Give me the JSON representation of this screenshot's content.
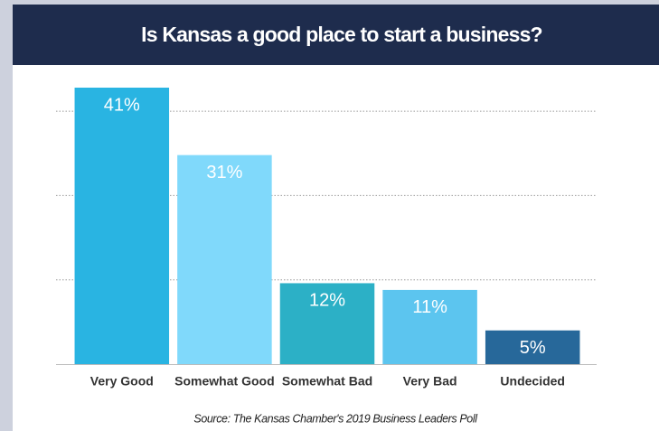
{
  "chart_data": {
    "type": "bar",
    "title": "Is Kansas a good place to start a business?",
    "source": "Source: The Kansas Chamber's 2019 Business Leaders Poll",
    "categories": [
      "Very Good",
      "Somewhat Good",
      "Somewhat Bad",
      "Very Bad",
      "Undecided"
    ],
    "values": [
      41,
      31,
      12,
      11,
      5
    ],
    "value_labels": [
      "41%",
      "31%",
      "12%",
      "11%",
      "5%"
    ],
    "colors": [
      "#29b4e2",
      "#80d9fb",
      "#2cb0c6",
      "#5cc5ef",
      "#27689a"
    ],
    "ylim": [
      0,
      41
    ],
    "yticks": [
      12.5,
      25,
      37.5
    ],
    "grid": true
  }
}
